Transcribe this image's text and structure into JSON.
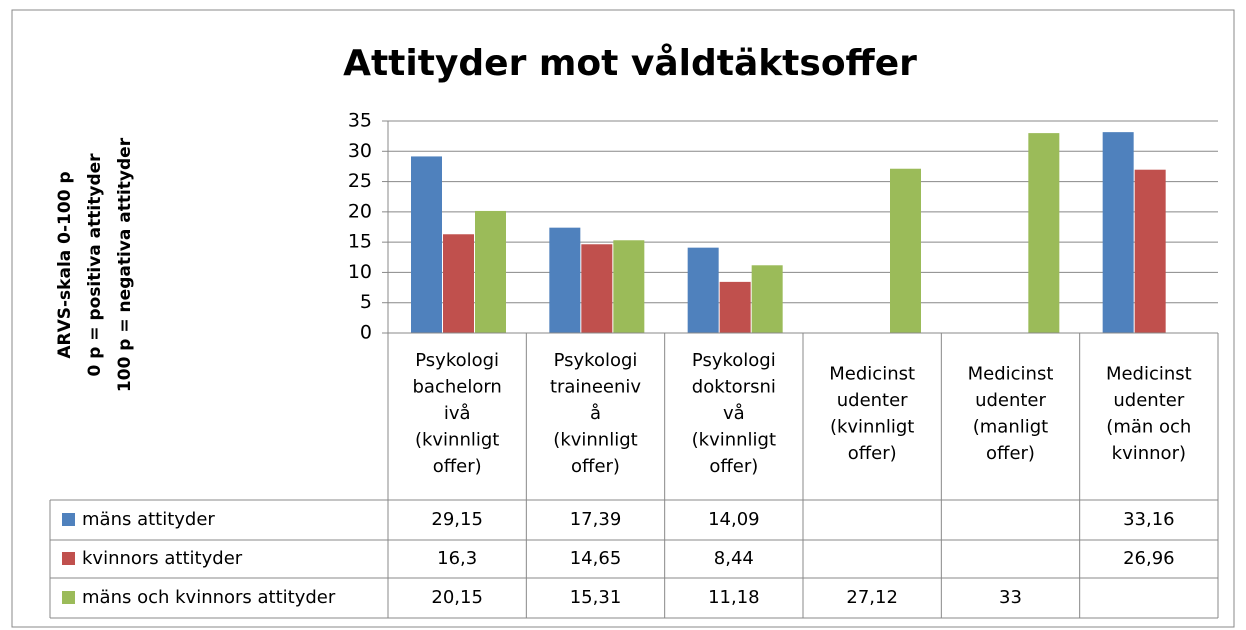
{
  "chart_data": {
    "type": "bar",
    "title": "Attityder mot våldtäktsoffer",
    "y_label": [
      "ARVS-skala 0-100 p",
      "0 p = positiva attityder",
      "100 p = negativa attityder"
    ],
    "categories": [
      [
        "Psykologi",
        "bachelorn",
        "ivå",
        "(kvinnligt",
        "offer)"
      ],
      [
        "Psykologi",
        "traineeniv",
        "å",
        "(kvinnligt",
        "offer)"
      ],
      [
        "Psykologi",
        "doktorsni",
        "vå",
        "(kvinnligt",
        "offer)"
      ],
      [
        "Medicinst",
        "udenter",
        "(kvinnligt",
        "offer)"
      ],
      [
        "Medicinst",
        "udenter",
        "(manligt",
        "offer)"
      ],
      [
        "Medicinst",
        "udenter",
        "(män och",
        "kvinnor)"
      ]
    ],
    "series": [
      {
        "name": "mäns attityder",
        "color": "#4f81bd",
        "values": [
          29.15,
          17.39,
          14.09,
          null,
          null,
          33.16
        ],
        "value_labels": [
          "29,15",
          "17,39",
          "14,09",
          null,
          null,
          "33,16"
        ]
      },
      {
        "name": "kvinnors attityder",
        "color": "#c0504d",
        "values": [
          16.3,
          14.65,
          8.44,
          null,
          null,
          26.96
        ],
        "value_labels": [
          "16,3",
          "14,65",
          "8,44",
          null,
          null,
          "26,96"
        ]
      },
      {
        "name": "mäns och kvinnors attityder",
        "color": "#9bbb59",
        "values": [
          20.15,
          15.31,
          11.18,
          27.12,
          33,
          null
        ],
        "value_labels": [
          "20,15",
          "15,31",
          "11,18",
          "27,12",
          "33",
          null
        ]
      }
    ],
    "ylim": [
      0,
      35
    ],
    "yticks": [
      0,
      5,
      10,
      15,
      20,
      25,
      30,
      35
    ],
    "grid": true
  }
}
